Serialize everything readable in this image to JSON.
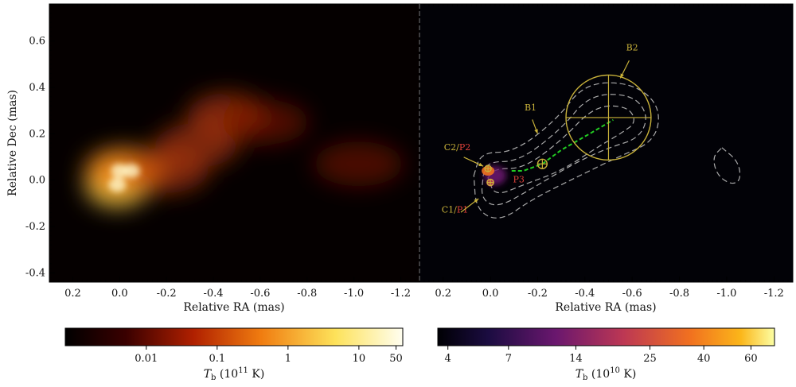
{
  "colors": {
    "annotation": "#c9b23a",
    "annotation_red": "#e0413a",
    "ridge": "#22cc22",
    "contour": "#aaaaaa",
    "left_bg": "#050000",
    "right_bg": "#020207"
  },
  "chart_data": [
    {
      "type": "heatmap",
      "title": "",
      "xlabel": "Relative RA (mas)",
      "ylabel": "Relative Dec (mas)",
      "xlim": [
        0.3,
        -1.28
      ],
      "ylim": [
        -0.44,
        0.76
      ],
      "xticks": [
        0.2,
        0.0,
        -0.2,
        -0.4,
        -0.6,
        -0.8,
        -1.0,
        -1.2
      ],
      "xtick_labels": [
        "0.2",
        "0.0",
        "-0.2",
        "-0.4",
        "-0.6",
        "-0.8",
        "-1.0",
        "-1.2"
      ],
      "yticks": [
        0.6,
        0.4,
        0.2,
        0.0,
        -0.2,
        -0.4
      ],
      "ytick_labels": [
        "0.6",
        "0.4",
        "0.2",
        "0.0",
        "-0.2",
        "-0.4"
      ],
      "emission_components": [
        {
          "ra": 0.01,
          "dec": -0.02,
          "intensity": 1.0
        },
        {
          "ra": 0.0,
          "dec": 0.04,
          "intensity": 0.85
        },
        {
          "ra": -0.05,
          "dec": 0.04,
          "intensity": 0.75
        },
        {
          "ra": -0.2,
          "dec": 0.04,
          "intensity": 0.5
        },
        {
          "ra": -0.33,
          "dec": 0.15,
          "intensity": 0.5
        },
        {
          "ra": -0.46,
          "dec": 0.28,
          "intensity": 0.6
        },
        {
          "ra": -0.62,
          "dec": 0.25,
          "intensity": 0.4
        },
        {
          "ra": -1.02,
          "dec": 0.07,
          "intensity": 0.35
        }
      ],
      "colorbar": {
        "label": "T_b (10^11 K)",
        "ticks": [
          "0.01",
          "0.1",
          "1",
          "10",
          "50"
        ],
        "scale": "log",
        "colormap": "afmhot"
      }
    },
    {
      "type": "heatmap",
      "title": "",
      "xlabel": "Relative RA (mas)",
      "ylabel": "",
      "xlim": [
        0.3,
        -1.28
      ],
      "ylim": [
        -0.44,
        0.76
      ],
      "xticks": [
        0.2,
        0.0,
        -0.2,
        -0.4,
        -0.6,
        -0.8,
        -1.0,
        -1.2
      ],
      "xtick_labels": [
        "0.2",
        "0.0",
        "-0.2",
        "-0.4",
        "-0.6",
        "-0.8",
        "-1.0",
        "-1.2"
      ],
      "annotations": [
        {
          "text": "B2",
          "ra": -0.6,
          "dec": 0.56
        },
        {
          "text": "B1",
          "ra": -0.17,
          "dec": 0.3
        },
        {
          "text": "C2",
          "sep": "/",
          "text2": "P2",
          "ra": 0.14,
          "dec": 0.13
        },
        {
          "text": "C1",
          "sep": "/",
          "text2": "P1",
          "ra": 0.15,
          "dec": -0.14
        },
        {
          "text": "P3",
          "ra": -0.12,
          "dec": -0.01
        }
      ],
      "model_components": [
        {
          "name": "B2",
          "ra": -0.5,
          "dec": 0.27,
          "radius": 0.18
        },
        {
          "name": "B1",
          "ra": -0.22,
          "dec": 0.07,
          "radius": 0.02
        },
        {
          "name": "C2",
          "ra": 0.01,
          "dec": 0.05,
          "radius": 0.012
        },
        {
          "name": "C1",
          "ra": 0.0,
          "dec": -0.01,
          "radius": 0.012
        }
      ],
      "ridge_line": {
        "ra": [
          -0.09,
          -0.14,
          -0.22,
          -0.3,
          -0.42,
          -0.52
        ],
        "dec": [
          0.04,
          0.04,
          0.07,
          0.13,
          0.2,
          0.26
        ]
      },
      "colorbar": {
        "label": "T_b (10^10 K)",
        "ticks": [
          "4",
          "7",
          "14",
          "25",
          "40",
          "60"
        ],
        "scale": "log",
        "colormap": "inferno"
      }
    }
  ]
}
